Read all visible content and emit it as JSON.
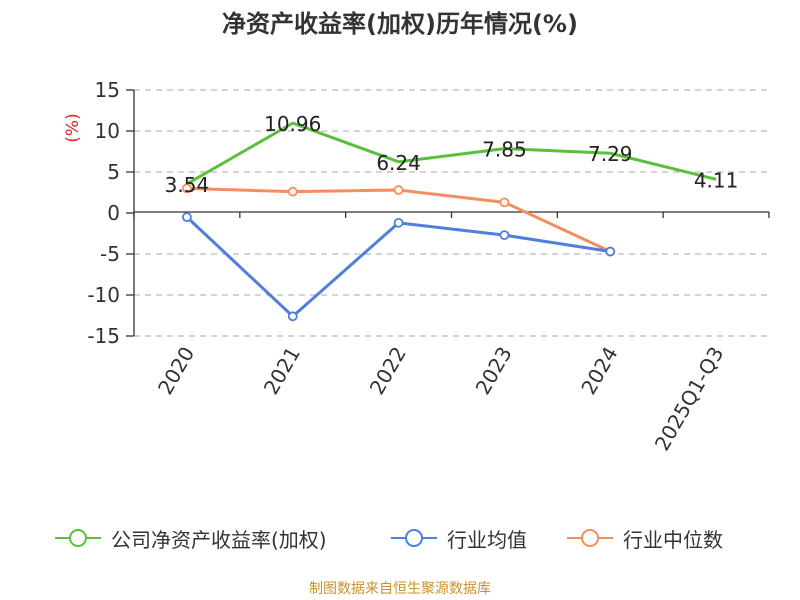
{
  "chart_data": {
    "type": "line",
    "title": "净资产收益率(加权)历年情况(%)",
    "ylabel": "(%)",
    "xlabel": "",
    "categories": [
      "2020",
      "2021",
      "2022",
      "2023",
      "2024",
      "2025Q1-Q3"
    ],
    "ylim": [
      -15,
      15
    ],
    "yticks": [
      15,
      10,
      5,
      0,
      -5,
      -10,
      -15
    ],
    "grid": true,
    "legend_position": "bottom",
    "series": [
      {
        "name": "公司净资产收益率(加权)",
        "color": "#5ac03b",
        "values": [
          3.54,
          10.96,
          6.24,
          7.85,
          7.29,
          4.11
        ],
        "labels": [
          "3.54",
          "10.96",
          "6.24",
          "7.85",
          "7.29",
          "4.11"
        ],
        "markers": false
      },
      {
        "name": "行业均值",
        "color": "#4f7fdc",
        "values": [
          -0.5,
          -12.6,
          -1.2,
          -2.7,
          -4.7,
          null
        ],
        "markers": true
      },
      {
        "name": "行业中位数",
        "color": "#f68d5c",
        "values": [
          3.0,
          2.6,
          2.8,
          1.3,
          -4.7,
          null
        ],
        "markers": true
      }
    ]
  },
  "source": "制图数据来自恒生聚源数据库"
}
